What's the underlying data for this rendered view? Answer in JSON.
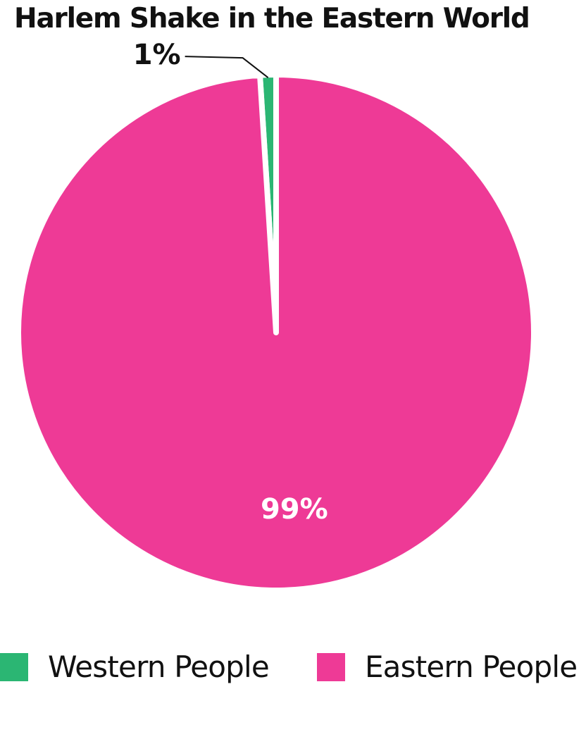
{
  "chart_data": {
    "type": "pie",
    "title": "Harlem Shake in the Eastern World",
    "slices": [
      {
        "label": "Western People",
        "value": 1,
        "display": "1%",
        "color": "#2bb673"
      },
      {
        "label": "Eastern People",
        "value": 99,
        "display": "99%",
        "color": "#ee3a96"
      }
    ],
    "legend_position": "bottom",
    "label_colors": {
      "inside": "#ffffff",
      "outside": "#111111"
    }
  }
}
